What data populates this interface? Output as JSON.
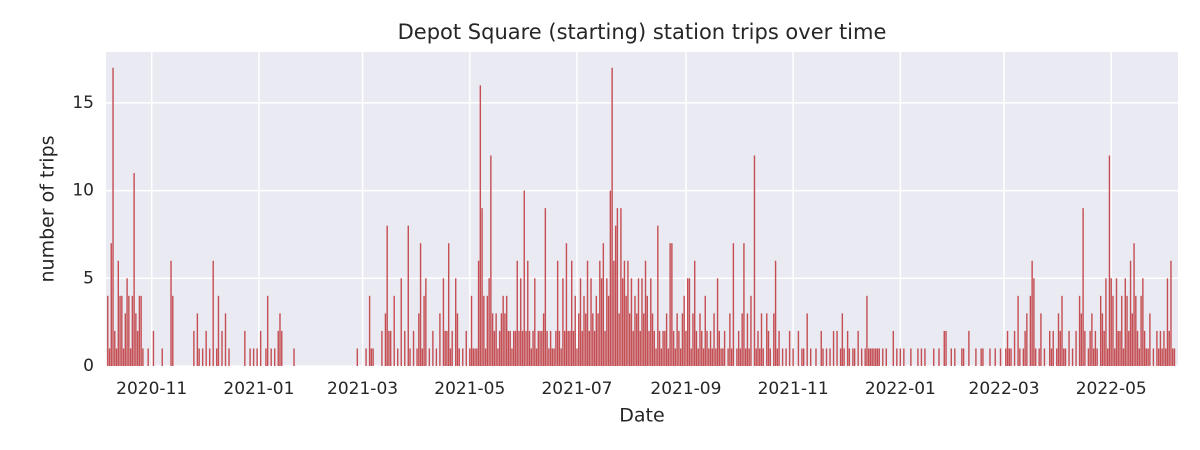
{
  "chart_data": {
    "type": "bar",
    "title": "Depot Square (starting) station trips over time",
    "x_label": "Date",
    "y_label": "number of trips",
    "color": "#c44e52",
    "grid": true,
    "xlim": [
      "2020-10-06",
      "2022-06-08"
    ],
    "xticks": [
      {
        "value": "2020-11-01",
        "label": "2020-11"
      },
      {
        "value": "2021-01-01",
        "label": "2021-01"
      },
      {
        "value": "2021-03-01",
        "label": "2021-03"
      },
      {
        "value": "2021-05-01",
        "label": "2021-05"
      },
      {
        "value": "2021-07-01",
        "label": "2021-07"
      },
      {
        "value": "2021-09-01",
        "label": "2021-09"
      },
      {
        "value": "2021-11-01",
        "label": "2021-11"
      },
      {
        "value": "2022-01-01",
        "label": "2022-01"
      },
      {
        "value": "2022-03-01",
        "label": "2022-03"
      },
      {
        "value": "2022-05-01",
        "label": "2022-05"
      }
    ],
    "ylim": [
      0,
      17.9
    ],
    "yticks": [
      0,
      5,
      10,
      15
    ],
    "x": [
      "2020-10-07",
      "2020-10-08",
      "2020-10-09",
      "2020-10-10",
      "2020-10-11",
      "2020-10-12",
      "2020-10-13",
      "2020-10-14",
      "2020-10-15",
      "2020-10-16",
      "2020-10-17",
      "2020-10-18",
      "2020-10-19",
      "2020-10-20",
      "2020-10-21",
      "2020-10-22",
      "2020-10-23",
      "2020-10-24",
      "2020-10-25",
      "2020-10-26",
      "2020-10-27",
      "2020-10-30",
      "2020-11-02",
      "2020-11-07",
      "2020-11-12",
      "2020-11-13",
      "2020-11-25",
      "2020-11-27",
      "2020-11-28",
      "2020-11-30",
      "2020-12-02",
      "2020-12-04",
      "2020-12-06",
      "2020-12-08",
      "2020-12-09",
      "2020-12-11",
      "2020-12-13",
      "2020-12-15",
      "2020-12-24",
      "2020-12-27",
      "2020-12-29",
      "2020-12-31",
      "2021-01-02",
      "2021-01-05",
      "2021-01-06",
      "2021-01-08",
      "2021-01-10",
      "2021-01-12",
      "2021-01-13",
      "2021-01-14",
      "2021-01-21",
      "2021-02-26",
      "2021-03-03",
      "2021-03-05",
      "2021-03-06",
      "2021-03-07",
      "2021-03-12",
      "2021-03-14",
      "2021-03-15",
      "2021-03-16",
      "2021-03-17",
      "2021-03-19",
      "2021-03-21",
      "2021-03-23",
      "2021-03-25",
      "2021-03-27",
      "2021-03-28",
      "2021-03-30",
      "2021-04-01",
      "2021-04-02",
      "2021-04-03",
      "2021-04-04",
      "2021-04-05",
      "2021-04-06",
      "2021-04-08",
      "2021-04-10",
      "2021-04-12",
      "2021-04-14",
      "2021-04-16",
      "2021-04-17",
      "2021-04-18",
      "2021-04-19",
      "2021-04-20",
      "2021-04-21",
      "2021-04-23",
      "2021-04-24",
      "2021-04-25",
      "2021-04-27",
      "2021-04-29",
      "2021-05-01",
      "2021-05-02",
      "2021-05-03",
      "2021-05-04",
      "2021-05-05",
      "2021-05-06",
      "2021-05-07",
      "2021-05-08",
      "2021-05-09",
      "2021-05-10",
      "2021-05-11",
      "2021-05-12",
      "2021-05-13",
      "2021-05-14",
      "2021-05-15",
      "2021-05-16",
      "2021-05-17",
      "2021-05-18",
      "2021-05-19",
      "2021-05-20",
      "2021-05-21",
      "2021-05-22",
      "2021-05-23",
      "2021-05-24",
      "2021-05-25",
      "2021-05-26",
      "2021-05-27",
      "2021-05-28",
      "2021-05-29",
      "2021-05-30",
      "2021-05-31",
      "2021-06-01",
      "2021-06-02",
      "2021-06-03",
      "2021-06-04",
      "2021-06-05",
      "2021-06-06",
      "2021-06-07",
      "2021-06-08",
      "2021-06-09",
      "2021-06-10",
      "2021-06-11",
      "2021-06-12",
      "2021-06-13",
      "2021-06-14",
      "2021-06-15",
      "2021-06-16",
      "2021-06-17",
      "2021-06-18",
      "2021-06-19",
      "2021-06-20",
      "2021-06-21",
      "2021-06-22",
      "2021-06-23",
      "2021-06-24",
      "2021-06-25",
      "2021-06-26",
      "2021-06-27",
      "2021-06-28",
      "2021-06-29",
      "2021-06-30",
      "2021-07-01",
      "2021-07-02",
      "2021-07-03",
      "2021-07-04",
      "2021-07-05",
      "2021-07-06",
      "2021-07-07",
      "2021-07-08",
      "2021-07-09",
      "2021-07-10",
      "2021-07-11",
      "2021-07-12",
      "2021-07-13",
      "2021-07-14",
      "2021-07-15",
      "2021-07-16",
      "2021-07-17",
      "2021-07-18",
      "2021-07-19",
      "2021-07-20",
      "2021-07-21",
      "2021-07-22",
      "2021-07-23",
      "2021-07-24",
      "2021-07-25",
      "2021-07-26",
      "2021-07-27",
      "2021-07-28",
      "2021-07-29",
      "2021-07-30",
      "2021-07-31",
      "2021-08-01",
      "2021-08-02",
      "2021-08-03",
      "2021-08-04",
      "2021-08-05",
      "2021-08-06",
      "2021-08-07",
      "2021-08-08",
      "2021-08-09",
      "2021-08-10",
      "2021-08-11",
      "2021-08-12",
      "2021-08-13",
      "2021-08-14",
      "2021-08-15",
      "2021-08-16",
      "2021-08-17",
      "2021-08-18",
      "2021-08-19",
      "2021-08-20",
      "2021-08-21",
      "2021-08-22",
      "2021-08-23",
      "2021-08-24",
      "2021-08-25",
      "2021-08-26",
      "2021-08-27",
      "2021-08-28",
      "2021-08-29",
      "2021-08-30",
      "2021-08-31",
      "2021-09-01",
      "2021-09-02",
      "2021-09-03",
      "2021-09-04",
      "2021-09-05",
      "2021-09-06",
      "2021-09-07",
      "2021-09-08",
      "2021-09-09",
      "2021-09-10",
      "2021-09-11",
      "2021-09-12",
      "2021-09-13",
      "2021-09-14",
      "2021-09-15",
      "2021-09-16",
      "2021-09-17",
      "2021-09-18",
      "2021-09-19",
      "2021-09-20",
      "2021-09-21",
      "2021-09-22",
      "2021-09-23",
      "2021-09-25",
      "2021-09-26",
      "2021-09-27",
      "2021-09-28",
      "2021-09-30",
      "2021-10-01",
      "2021-10-02",
      "2021-10-03",
      "2021-10-04",
      "2021-10-05",
      "2021-10-06",
      "2021-10-07",
      "2021-10-08",
      "2021-10-10",
      "2021-10-11",
      "2021-10-12",
      "2021-10-13",
      "2021-10-14",
      "2021-10-15",
      "2021-10-17",
      "2021-10-18",
      "2021-10-19",
      "2021-10-21",
      "2021-10-22",
      "2021-10-23",
      "2021-10-24",
      "2021-10-26",
      "2021-10-28",
      "2021-10-30",
      "2021-11-01",
      "2021-11-04",
      "2021-11-06",
      "2021-11-07",
      "2021-11-09",
      "2021-11-11",
      "2021-11-14",
      "2021-11-17",
      "2021-11-18",
      "2021-11-20",
      "2021-11-22",
      "2021-11-24",
      "2021-11-26",
      "2021-11-28",
      "2021-11-29",
      "2021-11-30",
      "2021-12-02",
      "2021-12-03",
      "2021-12-05",
      "2021-12-06",
      "2021-12-08",
      "2021-12-10",
      "2021-12-12",
      "2021-12-13",
      "2021-12-14",
      "2021-12-15",
      "2021-12-16",
      "2021-12-17",
      "2021-12-18",
      "2021-12-19",
      "2021-12-20",
      "2021-12-22",
      "2021-12-24",
      "2021-12-28",
      "2021-12-30",
      "2022-01-01",
      "2022-01-03",
      "2022-01-07",
      "2022-01-11",
      "2022-01-13",
      "2022-01-15",
      "2022-01-20",
      "2022-01-23",
      "2022-01-26",
      "2022-01-27",
      "2022-01-30",
      "2022-02-01",
      "2022-02-05",
      "2022-02-06",
      "2022-02-09",
      "2022-02-13",
      "2022-02-16",
      "2022-02-17",
      "2022-02-21",
      "2022-02-24",
      "2022-02-27",
      "2022-03-02",
      "2022-03-03",
      "2022-03-04",
      "2022-03-05",
      "2022-03-07",
      "2022-03-09",
      "2022-03-10",
      "2022-03-12",
      "2022-03-13",
      "2022-03-14",
      "2022-03-16",
      "2022-03-17",
      "2022-03-18",
      "2022-03-19",
      "2022-03-21",
      "2022-03-22",
      "2022-03-24",
      "2022-03-27",
      "2022-03-28",
      "2022-03-29",
      "2022-03-31",
      "2022-04-01",
      "2022-04-02",
      "2022-04-03",
      "2022-04-04",
      "2022-04-05",
      "2022-04-07",
      "2022-04-09",
      "2022-04-11",
      "2022-04-13",
      "2022-04-14",
      "2022-04-15",
      "2022-04-16",
      "2022-04-18",
      "2022-04-19",
      "2022-04-20",
      "2022-04-21",
      "2022-04-22",
      "2022-04-23",
      "2022-04-25",
      "2022-04-26",
      "2022-04-27",
      "2022-04-28",
      "2022-04-29",
      "2022-04-30",
      "2022-05-01",
      "2022-05-02",
      "2022-05-03",
      "2022-05-04",
      "2022-05-05",
      "2022-05-06",
      "2022-05-07",
      "2022-05-08",
      "2022-05-09",
      "2022-05-10",
      "2022-05-11",
      "2022-05-12",
      "2022-05-13",
      "2022-05-14",
      "2022-05-15",
      "2022-05-16",
      "2022-05-17",
      "2022-05-18",
      "2022-05-19",
      "2022-05-20",
      "2022-05-21",
      "2022-05-22",
      "2022-05-23",
      "2022-05-25",
      "2022-05-27",
      "2022-05-28",
      "2022-05-29",
      "2022-05-30",
      "2022-05-31",
      "2022-06-01",
      "2022-06-02",
      "2022-06-03",
      "2022-06-04",
      "2022-06-05",
      "2022-06-06"
    ],
    "values": [
      4,
      1,
      7,
      17,
      2,
      1,
      6,
      4,
      4,
      1,
      3,
      5,
      4,
      1,
      4,
      11,
      3,
      2,
      4,
      4,
      1,
      1,
      2,
      1,
      6,
      4,
      2,
      3,
      1,
      1,
      2,
      1,
      6,
      1,
      4,
      2,
      3,
      1,
      2,
      1,
      1,
      1,
      2,
      1,
      4,
      1,
      1,
      2,
      3,
      2,
      1,
      1,
      1,
      4,
      1,
      1,
      2,
      3,
      8,
      2,
      2,
      4,
      1,
      5,
      2,
      8,
      1,
      2,
      1,
      3,
      7,
      1,
      4,
      5,
      1,
      2,
      1,
      3,
      5,
      2,
      2,
      7,
      1,
      2,
      5,
      3,
      1,
      1,
      2,
      1,
      4,
      1,
      1,
      1,
      6,
      16,
      9,
      4,
      1,
      4,
      5,
      12,
      3,
      2,
      3,
      1,
      2,
      3,
      4,
      3,
      4,
      2,
      2,
      1,
      2,
      2,
      6,
      2,
      5,
      2,
      10,
      2,
      6,
      2,
      1,
      2,
      5,
      1,
      2,
      2,
      2,
      3,
      9,
      2,
      1,
      2,
      1,
      1,
      2,
      6,
      2,
      1,
      5,
      2,
      7,
      2,
      2,
      6,
      2,
      4,
      1,
      3,
      5,
      2,
      4,
      3,
      6,
      2,
      5,
      3,
      2,
      4,
      3,
      6,
      5,
      7,
      2,
      5,
      4,
      10,
      17,
      6,
      8,
      9,
      3,
      9,
      5,
      6,
      4,
      6,
      3,
      5,
      2,
      4,
      3,
      5,
      2,
      5,
      3,
      6,
      4,
      2,
      5,
      3,
      2,
      1,
      8,
      2,
      1,
      2,
      2,
      3,
      1,
      7,
      7,
      2,
      1,
      3,
      2,
      1,
      3,
      4,
      2,
      5,
      5,
      1,
      3,
      6,
      2,
      1,
      3,
      2,
      1,
      4,
      2,
      1,
      2,
      1,
      3,
      1,
      5,
      2,
      1,
      1,
      2,
      1,
      3,
      1,
      7,
      1,
      2,
      1,
      3,
      7,
      1,
      3,
      1,
      4,
      12,
      1,
      2,
      1,
      3,
      1,
      3,
      2,
      1,
      3,
      6,
      1,
      2,
      1,
      1,
      2,
      1,
      2,
      1,
      1,
      3,
      1,
      1,
      2,
      1,
      1,
      1,
      2,
      2,
      1,
      3,
      1,
      2,
      1,
      1,
      1,
      2,
      1,
      1,
      4,
      1,
      1,
      1,
      1,
      1,
      1,
      1,
      1,
      1,
      2,
      1,
      1,
      1,
      1,
      1,
      1,
      1,
      1,
      1,
      2,
      2,
      1,
      1,
      1,
      1,
      2,
      1,
      1,
      1,
      1,
      1,
      1,
      1,
      2,
      1,
      1,
      2,
      4,
      1,
      1,
      2,
      3,
      4,
      6,
      5,
      1,
      1,
      3,
      1,
      2,
      1,
      2,
      1,
      3,
      2,
      4,
      1,
      1,
      2,
      1,
      2,
      4,
      3,
      9,
      2,
      1,
      2,
      3,
      1,
      2,
      1,
      4,
      3,
      2,
      5,
      1,
      12,
      5,
      4,
      1,
      5,
      2,
      2,
      4,
      1,
      5,
      4,
      2,
      6,
      3,
      7,
      4,
      2,
      1,
      4,
      5,
      2,
      1,
      1,
      3,
      1,
      2,
      1,
      2,
      1,
      2,
      1,
      5,
      2,
      6,
      1,
      1
    ]
  }
}
